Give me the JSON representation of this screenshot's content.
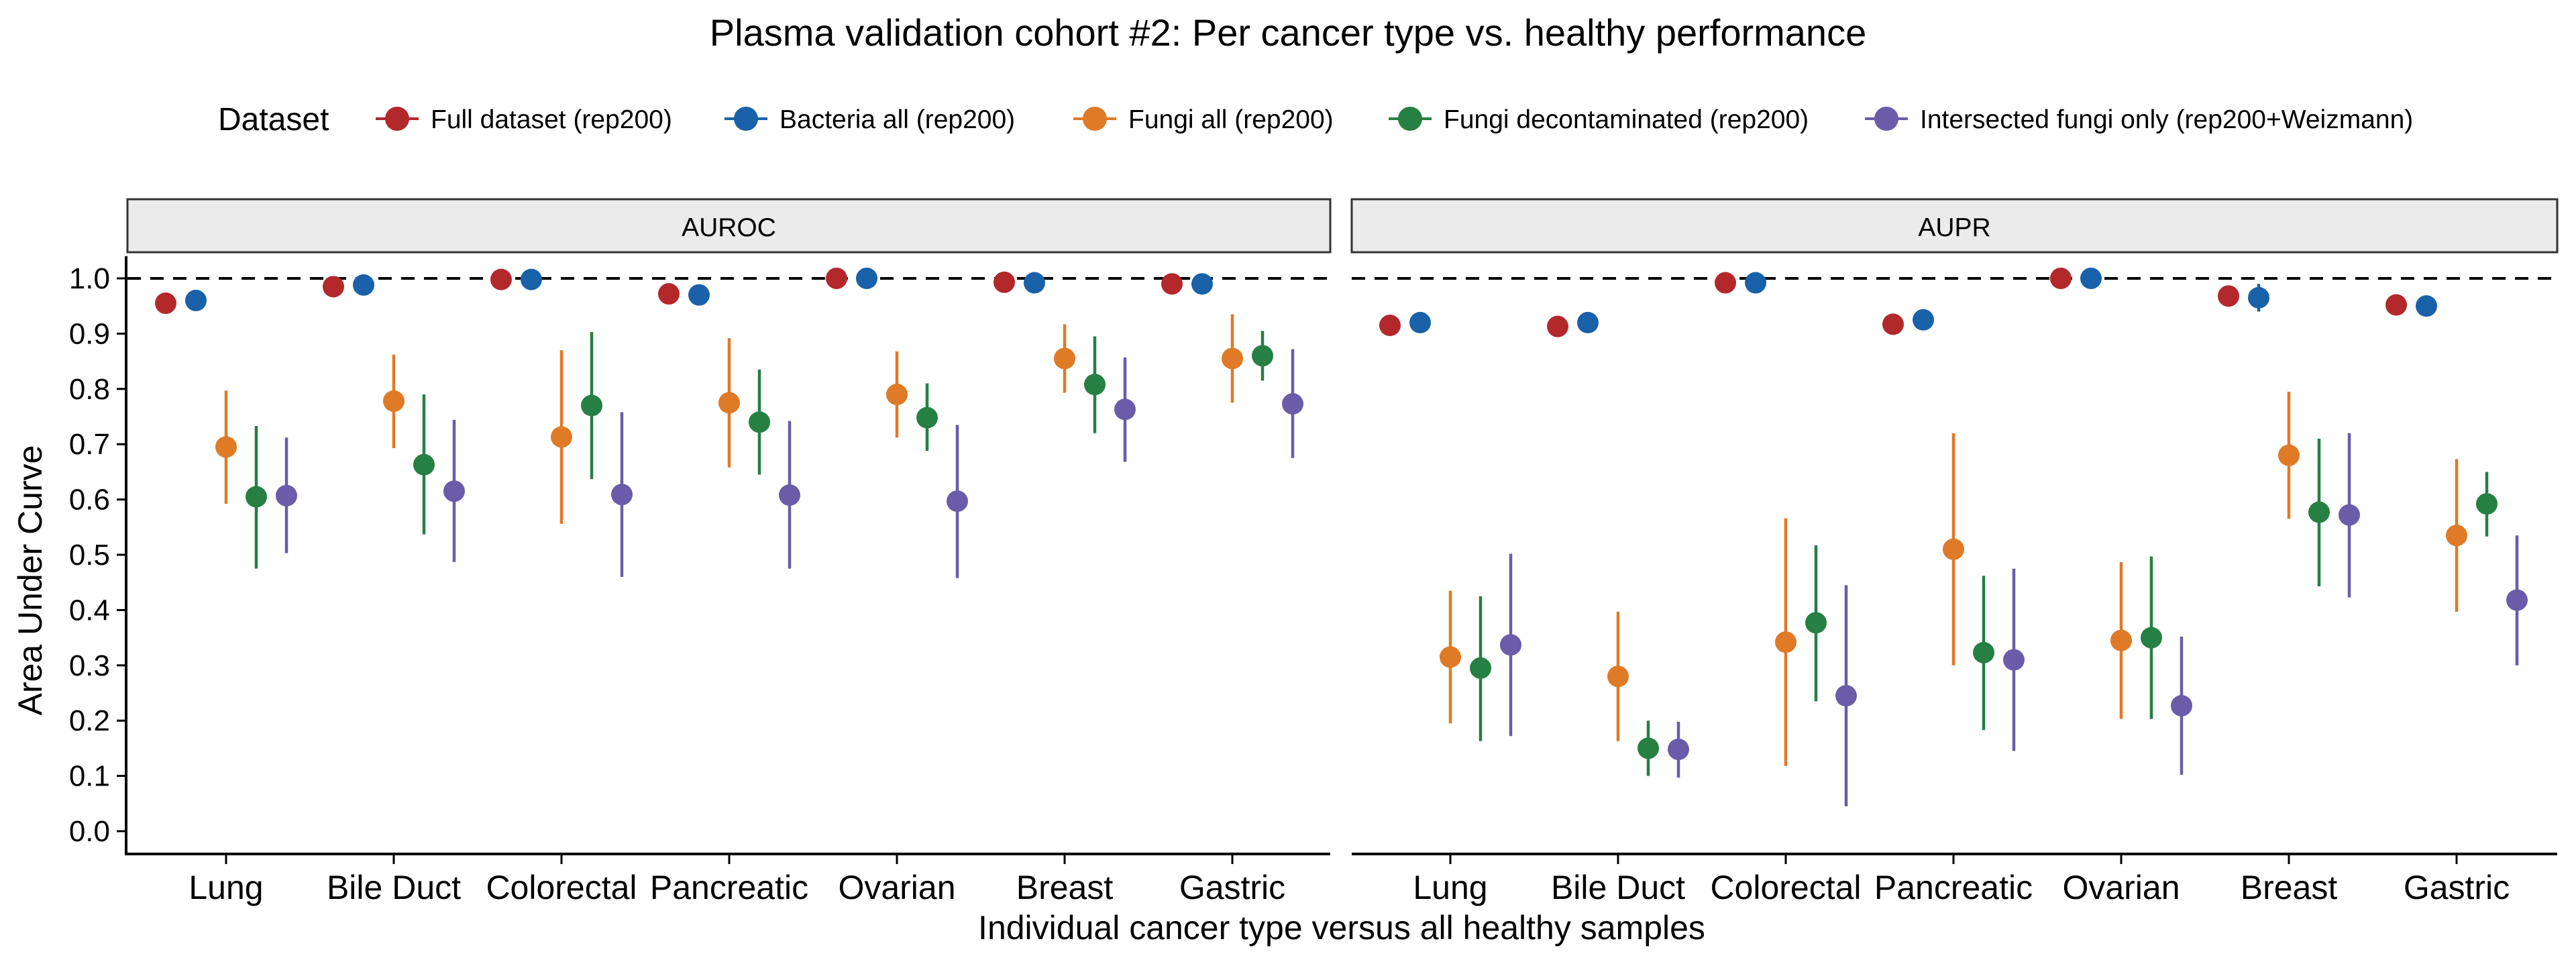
{
  "chart_data": {
    "type": "scatter",
    "title": "Plasma validation cohort #2: Per cancer type vs. healthy performance",
    "xlabel": "Individual cancer type versus all healthy samples",
    "ylabel": "Area Under Curve",
    "ylim": [
      -0.04,
      1.04
    ],
    "yticks": [
      "0.0",
      "0.1",
      "0.2",
      "0.3",
      "0.4",
      "0.5",
      "0.6",
      "0.7",
      "0.8",
      "0.9",
      "1.0"
    ],
    "reference_line": 1.0,
    "grid": false,
    "legend": {
      "title": "Dataset",
      "placement": "top"
    },
    "categories": [
      "Lung",
      "Bile Duct",
      "Colorectal",
      "Pancreatic",
      "Ovarian",
      "Breast",
      "Gastric"
    ],
    "series": [
      {
        "name": "Full dataset (rep200)",
        "color": "#B2282B"
      },
      {
        "name": "Bacteria all (rep200)",
        "color": "#1961A8"
      },
      {
        "name": "Fungi all (rep200)",
        "color": "#DF7A26"
      },
      {
        "name": "Fungi decontaminated (rep200)",
        "color": "#267F43"
      },
      {
        "name": "Intersected fungi only (rep200+Weizmann)",
        "color": "#6A5CA8"
      }
    ],
    "panels": [
      {
        "strip": "AUROC",
        "data": [
          [
            {
              "y": 0.955,
              "lo": null,
              "hi": null
            },
            {
              "y": 0.96,
              "lo": null,
              "hi": null
            },
            {
              "y": 0.695,
              "lo": 0.592,
              "hi": 0.797
            },
            {
              "y": 0.605,
              "lo": 0.475,
              "hi": 0.733
            },
            {
              "y": 0.607,
              "lo": 0.503,
              "hi": 0.712
            }
          ],
          [
            {
              "y": 0.985,
              "lo": null,
              "hi": null
            },
            {
              "y": 0.988,
              "lo": null,
              "hi": null
            },
            {
              "y": 0.778,
              "lo": 0.693,
              "hi": 0.862
            },
            {
              "y": 0.663,
              "lo": 0.537,
              "hi": 0.79
            },
            {
              "y": 0.615,
              "lo": 0.487,
              "hi": 0.744
            }
          ],
          [
            {
              "y": 0.998,
              "lo": null,
              "hi": null
            },
            {
              "y": 0.998,
              "lo": null,
              "hi": null
            },
            {
              "y": 0.713,
              "lo": 0.556,
              "hi": 0.87
            },
            {
              "y": 0.77,
              "lo": 0.637,
              "hi": 0.903
            },
            {
              "y": 0.609,
              "lo": 0.46,
              "hi": 0.758
            }
          ],
          [
            {
              "y": 0.972,
              "lo": null,
              "hi": null
            },
            {
              "y": 0.97,
              "lo": null,
              "hi": null
            },
            {
              "y": 0.775,
              "lo": 0.658,
              "hi": 0.892
            },
            {
              "y": 0.74,
              "lo": 0.645,
              "hi": 0.835
            },
            {
              "y": 0.608,
              "lo": 0.475,
              "hi": 0.742
            }
          ],
          [
            {
              "y": 1.0,
              "lo": null,
              "hi": null
            },
            {
              "y": 1.0,
              "lo": null,
              "hi": null
            },
            {
              "y": 0.79,
              "lo": 0.712,
              "hi": 0.868
            },
            {
              "y": 0.748,
              "lo": 0.688,
              "hi": 0.81
            },
            {
              "y": 0.597,
              "lo": 0.458,
              "hi": 0.735
            }
          ],
          [
            {
              "y": 0.993,
              "lo": null,
              "hi": null
            },
            {
              "y": 0.992,
              "lo": null,
              "hi": null
            },
            {
              "y": 0.855,
              "lo": 0.793,
              "hi": 0.917
            },
            {
              "y": 0.808,
              "lo": 0.72,
              "hi": 0.895
            },
            {
              "y": 0.763,
              "lo": 0.668,
              "hi": 0.857
            }
          ],
          [
            {
              "y": 0.99,
              "lo": null,
              "hi": null
            },
            {
              "y": 0.99,
              "lo": null,
              "hi": null
            },
            {
              "y": 0.855,
              "lo": 0.775,
              "hi": 0.935
            },
            {
              "y": 0.86,
              "lo": 0.815,
              "hi": 0.905
            },
            {
              "y": 0.773,
              "lo": 0.675,
              "hi": 0.872
            }
          ]
        ]
      },
      {
        "strip": "AUPR",
        "data": [
          [
            {
              "y": 0.915,
              "lo": null,
              "hi": null
            },
            {
              "y": 0.92,
              "lo": null,
              "hi": null
            },
            {
              "y": 0.315,
              "lo": 0.195,
              "hi": 0.435
            },
            {
              "y": 0.295,
              "lo": 0.163,
              "hi": 0.425
            },
            {
              "y": 0.337,
              "lo": 0.172,
              "hi": 0.502
            }
          ],
          [
            {
              "y": 0.913,
              "lo": null,
              "hi": null
            },
            {
              "y": 0.92,
              "lo": null,
              "hi": null
            },
            {
              "y": 0.28,
              "lo": 0.163,
              "hi": 0.397
            },
            {
              "y": 0.15,
              "lo": 0.1,
              "hi": 0.2
            },
            {
              "y": 0.148,
              "lo": 0.097,
              "hi": 0.198
            }
          ],
          [
            {
              "y": 0.992,
              "lo": null,
              "hi": null
            },
            {
              "y": 0.992,
              "lo": null,
              "hi": null
            },
            {
              "y": 0.342,
              "lo": 0.118,
              "hi": 0.566
            },
            {
              "y": 0.377,
              "lo": 0.235,
              "hi": 0.517
            },
            {
              "y": 0.245,
              "lo": 0.045,
              "hi": 0.445
            }
          ],
          [
            {
              "y": 0.917,
              "lo": null,
              "hi": null
            },
            {
              "y": 0.925,
              "lo": null,
              "hi": null
            },
            {
              "y": 0.51,
              "lo": 0.3,
              "hi": 0.72
            },
            {
              "y": 0.323,
              "lo": 0.183,
              "hi": 0.462
            },
            {
              "y": 0.31,
              "lo": 0.145,
              "hi": 0.475
            }
          ],
          [
            {
              "y": 1.0,
              "lo": null,
              "hi": null
            },
            {
              "y": 1.0,
              "lo": null,
              "hi": null
            },
            {
              "y": 0.345,
              "lo": 0.203,
              "hi": 0.487
            },
            {
              "y": 0.35,
              "lo": 0.203,
              "hi": 0.497
            },
            {
              "y": 0.227,
              "lo": 0.102,
              "hi": 0.352
            }
          ],
          [
            {
              "y": 0.968,
              "lo": null,
              "hi": null
            },
            {
              "y": 0.965,
              "lo": 0.94,
              "hi": 0.99
            },
            {
              "y": 0.68,
              "lo": 0.565,
              "hi": 0.795
            },
            {
              "y": 0.577,
              "lo": 0.443,
              "hi": 0.71
            },
            {
              "y": 0.572,
              "lo": 0.423,
              "hi": 0.72
            }
          ],
          [
            {
              "y": 0.952,
              "lo": null,
              "hi": null
            },
            {
              "y": 0.95,
              "lo": null,
              "hi": null
            },
            {
              "y": 0.535,
              "lo": 0.397,
              "hi": 0.673
            },
            {
              "y": 0.592,
              "lo": 0.533,
              "hi": 0.65
            },
            {
              "y": 0.418,
              "lo": 0.3,
              "hi": 0.535
            }
          ]
        ]
      }
    ]
  }
}
